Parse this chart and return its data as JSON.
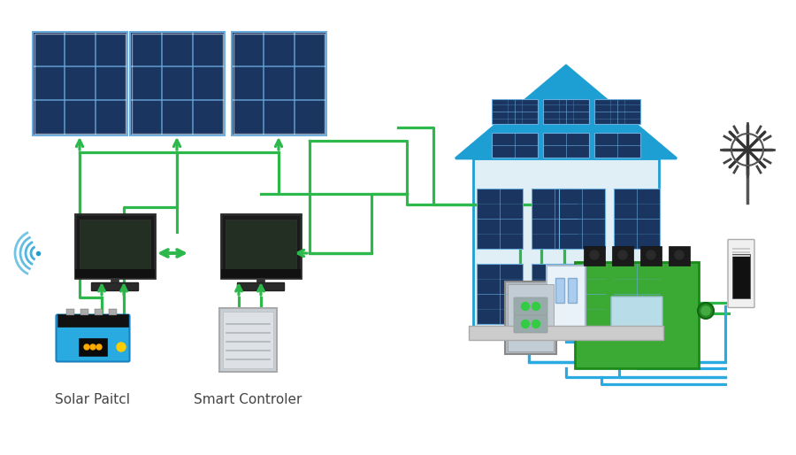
{
  "bg_color": "#ffffff",
  "green": "#2db84b",
  "blue_house": "#1e9fd4",
  "dark_panel": "#1a3560",
  "panel_grid_color": "#4a8fc4",
  "panel_line_color": "#6aabdd",
  "battery_blue": "#29aae1",
  "green_box_color": "#3aaa35",
  "gray_color": "#a8b5be",
  "arrow_blue": "#29aae1",
  "text_color": "#444444",
  "label1": "Solar Paitcl",
  "label2": "Smart Controler",
  "fig_width": 9.0,
  "fig_height": 5.14,
  "dpi": 100
}
